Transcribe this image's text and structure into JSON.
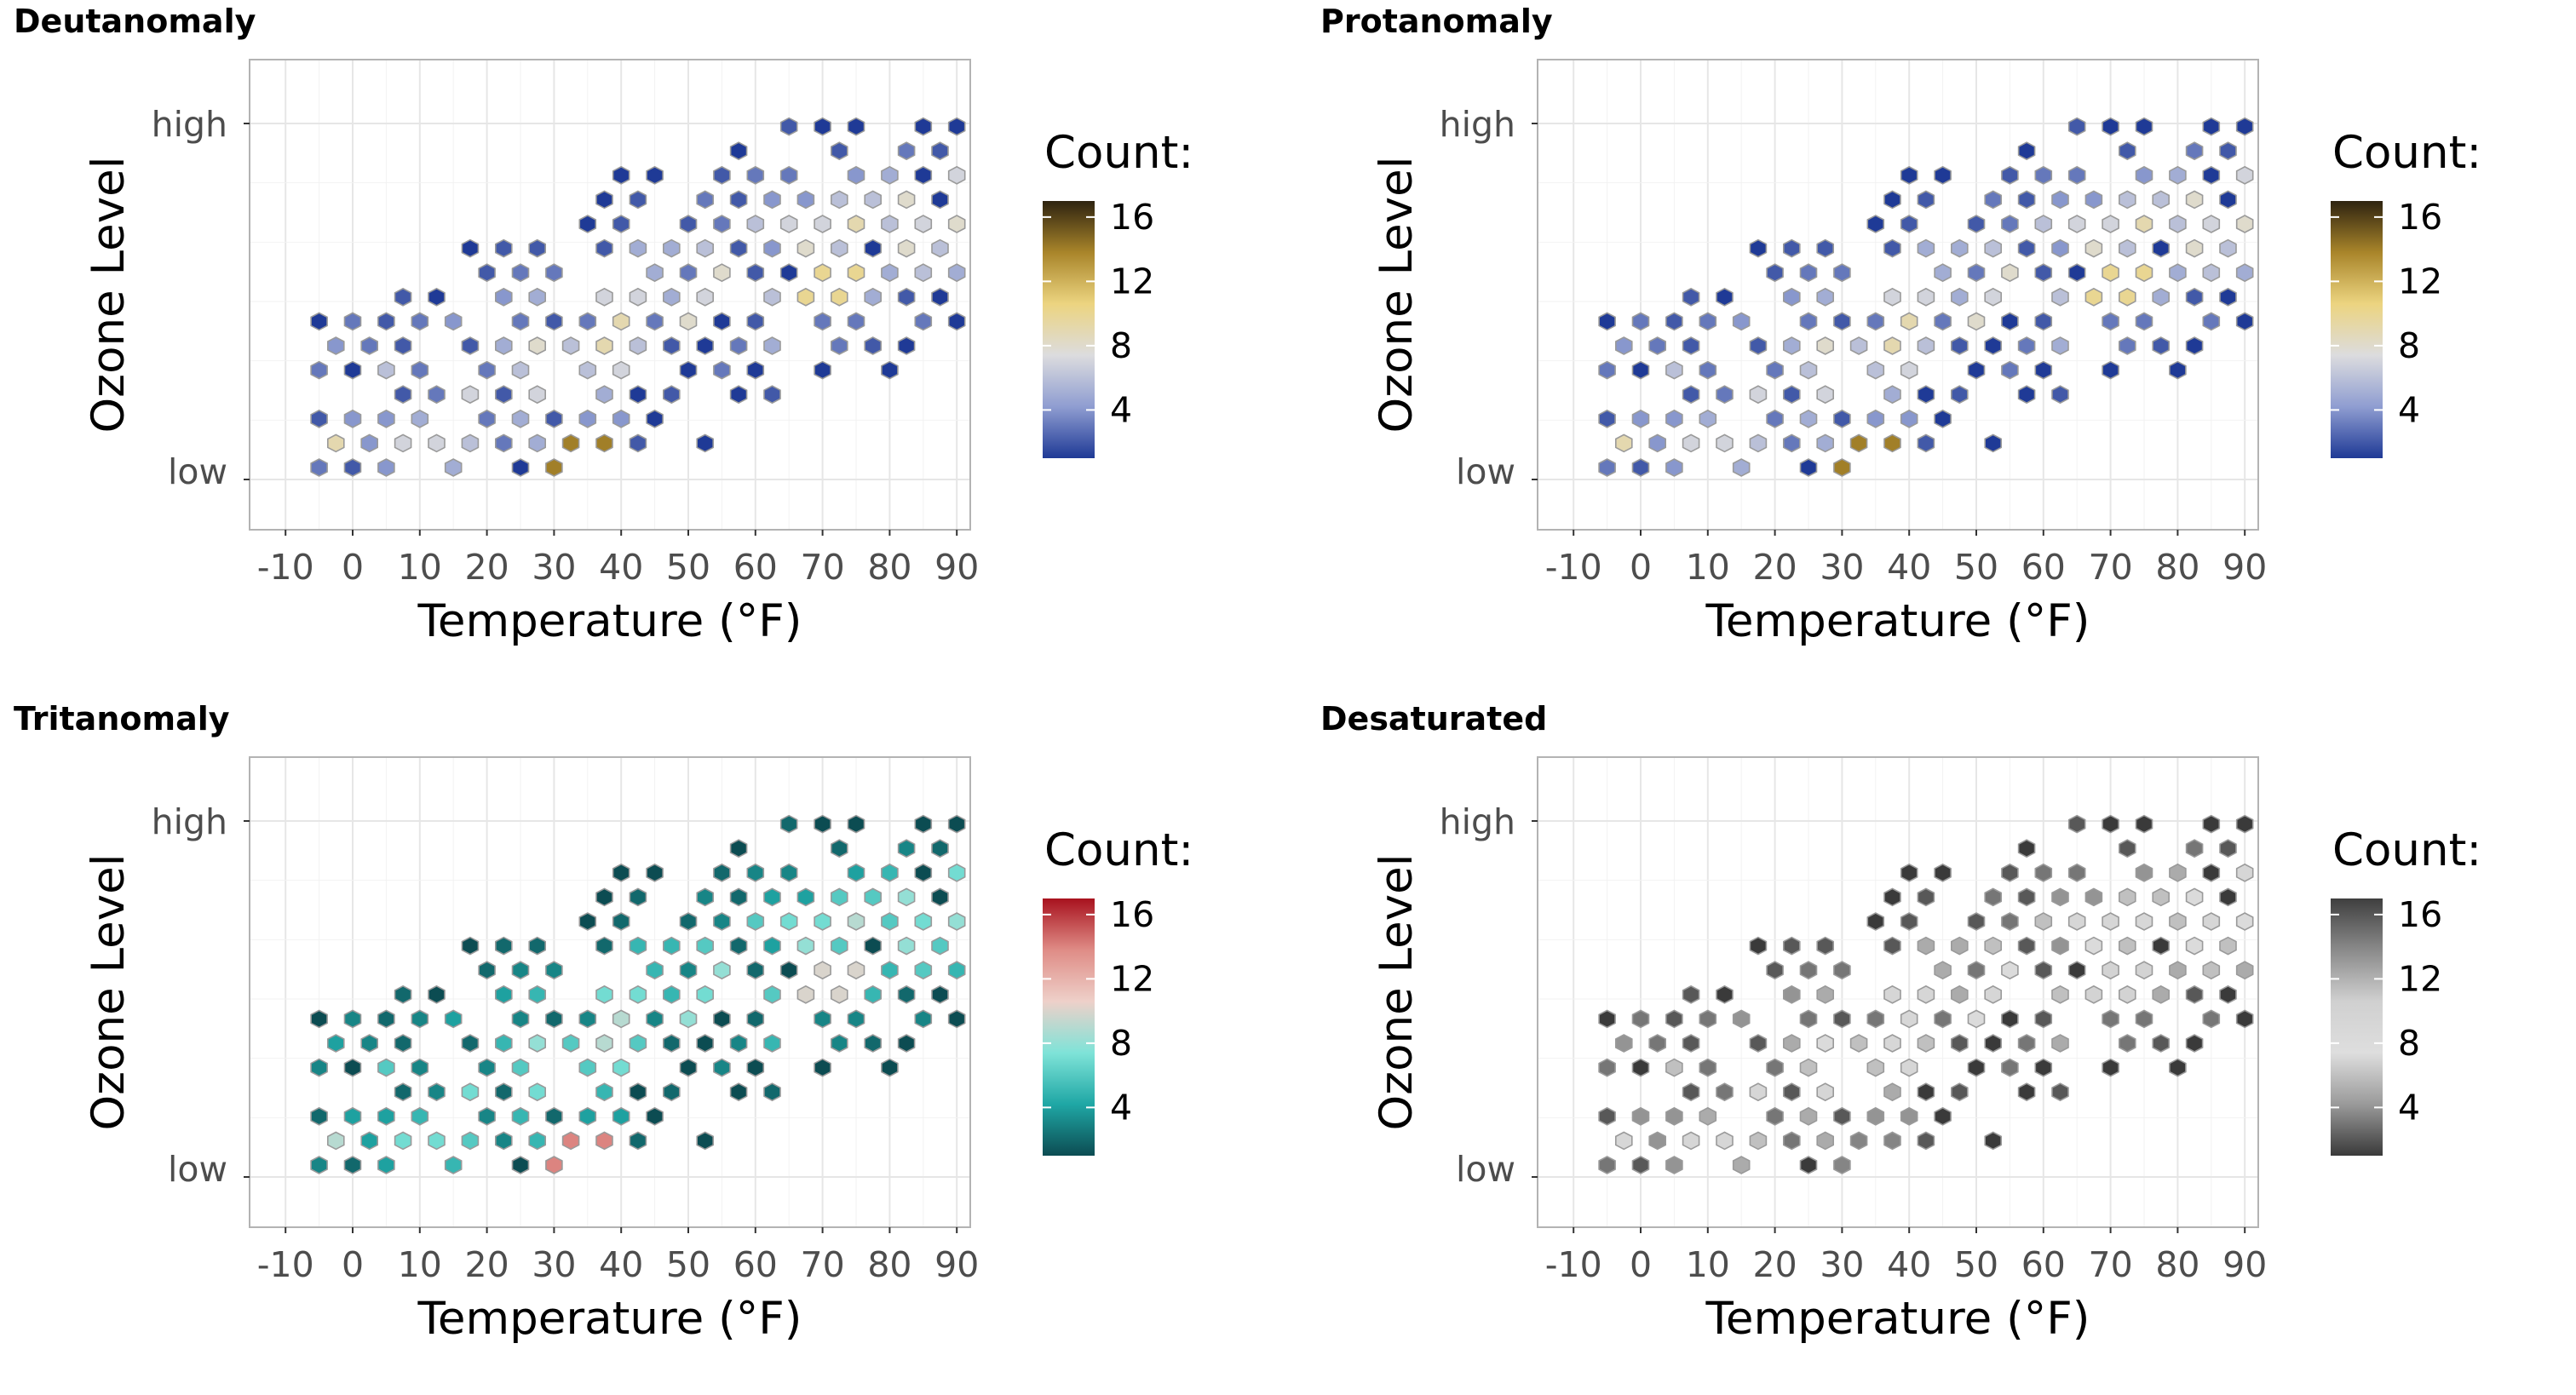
{
  "chart_data": [
    {
      "type": "hexbin",
      "panel_title": "Deutanomaly",
      "xlabel": "Temperature (°F)",
      "ylabel": "Ozone Level",
      "xticks": [
        "-10",
        "0",
        "10",
        "20",
        "30",
        "40",
        "50",
        "60",
        "70",
        "80",
        "90"
      ],
      "xlim": [
        -15,
        95
      ],
      "yticks": [
        "low",
        "high"
      ],
      "legend_title": "Count:",
      "legend_ticks": [
        "4",
        "8",
        "12",
        "16"
      ],
      "legend_range": [
        1,
        17
      ],
      "colors": [
        "#1f3a96",
        "#8f9dd1",
        "#dcdcde",
        "#ecd480",
        "#a9852a",
        "#2e2310"
      ],
      "grid": true
    },
    {
      "type": "hexbin",
      "panel_title": "Protanomaly",
      "xlabel": "Temperature (°F)",
      "ylabel": "Ozone Level",
      "xticks": [
        "-10",
        "0",
        "10",
        "20",
        "30",
        "40",
        "50",
        "60",
        "70",
        "80",
        "90"
      ],
      "xlim": [
        -15,
        95
      ],
      "yticks": [
        "low",
        "high"
      ],
      "legend_title": "Count:",
      "legend_ticks": [
        "4",
        "8",
        "12",
        "16"
      ],
      "legend_range": [
        1,
        17
      ],
      "colors": [
        "#1f3a96",
        "#8f9dd1",
        "#dcdcde",
        "#ecd480",
        "#a9852a",
        "#2e2310"
      ],
      "grid": true
    },
    {
      "type": "hexbin",
      "panel_title": "Tritanomaly",
      "xlabel": "Temperature (°F)",
      "ylabel": "Ozone Level",
      "xticks": [
        "-10",
        "0",
        "10",
        "20",
        "30",
        "40",
        "50",
        "60",
        "70",
        "80",
        "90"
      ],
      "xlim": [
        -15,
        95
      ],
      "yticks": [
        "low",
        "high"
      ],
      "legend_title": "Count:",
      "legend_ticks": [
        "4",
        "8",
        "12",
        "16"
      ],
      "legend_range": [
        1,
        17
      ],
      "colors": [
        "#0c4c52",
        "#1fa7a5",
        "#7fe3d8",
        "#eed0c9",
        "#df8c86",
        "#a8121e"
      ],
      "grid": true
    },
    {
      "type": "hexbin",
      "panel_title": "Desaturated",
      "xlabel": "Temperature (°F)",
      "ylabel": "Ozone Level",
      "xticks": [
        "-10",
        "0",
        "10",
        "20",
        "30",
        "40",
        "50",
        "60",
        "70",
        "80",
        "90"
      ],
      "xlim": [
        -15,
        95
      ],
      "yticks": [
        "low",
        "high"
      ],
      "legend_title": "Count:",
      "legend_ticks": [
        "4",
        "8",
        "12",
        "16"
      ],
      "legend_range": [
        1,
        17
      ],
      "colors": [
        "#3a3a3a",
        "#9a9a9a",
        "#dedede",
        "#d0d0d0",
        "#8a8a8a",
        "#3f3f3f"
      ],
      "grid": true
    }
  ]
}
